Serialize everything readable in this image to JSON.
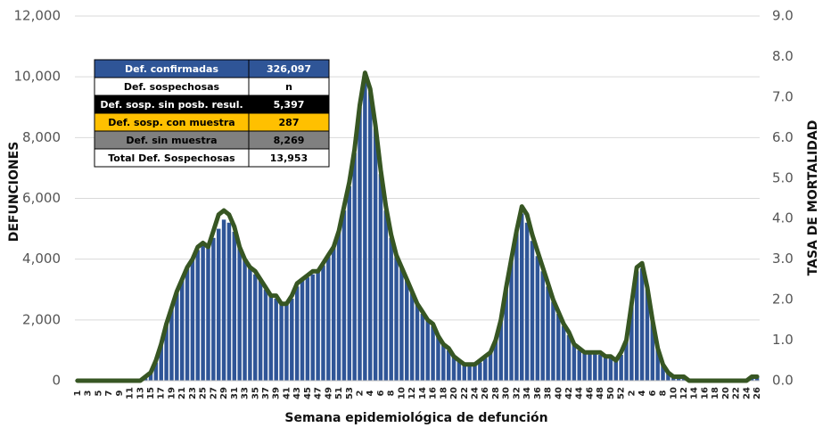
{
  "chart_data": {
    "type": "bar",
    "xlabel": "Semana epidemiológica de defunción",
    "ylabel": "DEFUNCIONES",
    "y2label": "TASA DE MORTALIDAD",
    "categories": [
      "1",
      null,
      "3",
      null,
      "5",
      null,
      "7",
      null,
      "9",
      null,
      "11",
      null,
      "13",
      null,
      "15",
      null,
      "17",
      null,
      "19",
      null,
      "21",
      null,
      "23",
      null,
      "25",
      null,
      "27",
      null,
      "29",
      null,
      "31",
      null,
      "33",
      null,
      "35",
      null,
      "37",
      null,
      "39",
      null,
      "41",
      null,
      "43",
      null,
      "45",
      null,
      "47",
      null,
      "49",
      null,
      "51",
      null,
      "53",
      null,
      "2",
      null,
      "4",
      null,
      "6",
      null,
      "8",
      null,
      "10",
      null,
      "12",
      null,
      "14",
      null,
      "16",
      null,
      "18",
      null,
      "20",
      null,
      "22",
      null,
      "24",
      null,
      "26",
      null,
      "28",
      null,
      "30",
      null,
      "32",
      null,
      "34",
      null,
      "36",
      null,
      "38",
      null,
      "40",
      null,
      "42",
      null,
      "44",
      null,
      "46",
      null,
      "48",
      null,
      "50",
      null,
      "52",
      null,
      "2",
      null,
      "4",
      null,
      "6",
      null,
      "8",
      null,
      "10",
      null,
      "12",
      null,
      "14",
      null,
      "16",
      null,
      "18",
      null,
      "20",
      null,
      "22",
      null,
      "24",
      null,
      "26"
    ],
    "bars": {
      "color": "#2f5597",
      "values": [
        0,
        0,
        0,
        0,
        0,
        0,
        0,
        0,
        0,
        0,
        0,
        0,
        20,
        80,
        250,
        600,
        1200,
        1900,
        2400,
        2900,
        3300,
        3700,
        4000,
        4300,
        4500,
        4400,
        4700,
        5000,
        5300,
        5200,
        4900,
        4400,
        4000,
        3700,
        3500,
        3300,
        3000,
        2800,
        2700,
        2500,
        2500,
        2700,
        3100,
        3300,
        3400,
        3500,
        3600,
        3800,
        4100,
        4400,
        4900,
        5600,
        6400,
        7500,
        9000,
        10000,
        9500,
        8300,
        6800,
        5600,
        4700,
        4100,
        3700,
        3300,
        2900,
        2500,
        2200,
        2000,
        1800,
        1500,
        1200,
        1000,
        800,
        650,
        550,
        500,
        520,
        600,
        750,
        950,
        1300,
        2000,
        3000,
        4000,
        4900,
        5500,
        5200,
        4600,
        4100,
        3600,
        3100,
        2600,
        2200,
        1800,
        1500,
        1200,
        1000,
        950,
        900,
        900,
        850,
        800,
        750,
        700,
        850,
        1300,
        2500,
        3600,
        3700,
        3000,
        2000,
        1100,
        500,
        250,
        150,
        100,
        80,
        60,
        50,
        40,
        40,
        40,
        40,
        40,
        40,
        40,
        40,
        40,
        40,
        60,
        100
      ]
    },
    "line": {
      "color": "#375623",
      "axis": "y2",
      "values": [
        0,
        0,
        0,
        0,
        0,
        0,
        0,
        0,
        0,
        0,
        0,
        0,
        0.0,
        0.1,
        0.2,
        0.5,
        0.9,
        1.4,
        1.8,
        2.2,
        2.5,
        2.8,
        3.0,
        3.3,
        3.4,
        3.3,
        3.7,
        4.1,
        4.2,
        4.1,
        3.8,
        3.3,
        3.0,
        2.8,
        2.7,
        2.5,
        2.3,
        2.1,
        2.1,
        1.9,
        1.9,
        2.1,
        2.4,
        2.5,
        2.6,
        2.7,
        2.7,
        2.9,
        3.1,
        3.3,
        3.7,
        4.3,
        4.9,
        5.7,
        6.8,
        7.6,
        7.2,
        6.3,
        5.2,
        4.3,
        3.6,
        3.1,
        2.8,
        2.5,
        2.2,
        1.9,
        1.7,
        1.5,
        1.4,
        1.1,
        0.9,
        0.8,
        0.6,
        0.5,
        0.4,
        0.4,
        0.4,
        0.5,
        0.6,
        0.7,
        1.0,
        1.5,
        2.3,
        3.0,
        3.7,
        4.3,
        4.1,
        3.6,
        3.2,
        2.8,
        2.4,
        2.0,
        1.7,
        1.4,
        1.2,
        0.9,
        0.8,
        0.7,
        0.7,
        0.7,
        0.7,
        0.6,
        0.6,
        0.5,
        0.7,
        1.0,
        1.9,
        2.8,
        2.9,
        2.3,
        1.5,
        0.8,
        0.4,
        0.2,
        0.1,
        0.1,
        0.1,
        0.0,
        0.0,
        0.0,
        0.0,
        0.0,
        0.0,
        0.0,
        0.0,
        0.0,
        0.0,
        0.0,
        0.0,
        0.1,
        0.1
      ]
    },
    "ylim": [
      0,
      12000
    ],
    "yticks": [
      0,
      {
        "value": 2000,
        "label": "2,000"
      },
      {
        "value": 4000,
        "label": "4,000"
      },
      {
        "value": 6000,
        "label": "6,000"
      },
      {
        "value": 8000,
        "label": "8,000"
      },
      {
        "value": 10000,
        "label": "10,000"
      },
      {
        "value": 12000,
        "label": "12,000"
      }
    ],
    "y2lim": [
      0,
      9
    ],
    "y2ticks": [
      {
        "value": 0,
        "label": "0.0"
      },
      {
        "value": 1,
        "label": "1.0"
      },
      {
        "value": 2,
        "label": "2.0"
      },
      {
        "value": 3,
        "label": "3.0"
      },
      {
        "value": 4,
        "label": "4.0"
      },
      {
        "value": 5,
        "label": "5.0"
      },
      {
        "value": 6,
        "label": "6.0"
      },
      {
        "value": 7,
        "label": "7.0"
      },
      {
        "value": 8,
        "label": "8.0"
      },
      {
        "value": 9,
        "label": "9.0"
      }
    ],
    "grid": true,
    "table": {
      "rows": [
        [
          "Def. confirmadas",
          "326,097"
        ],
        [
          "Def. sospechosas",
          "n"
        ],
        [
          "Def. sosp. sin posb. resul.",
          "5,397"
        ],
        [
          "Def. sosp. con  muestra",
          "287"
        ],
        [
          "Def. sin muestra",
          "8,269"
        ],
        [
          "Total Def. Sospechosas",
          "13,953"
        ]
      ]
    }
  }
}
